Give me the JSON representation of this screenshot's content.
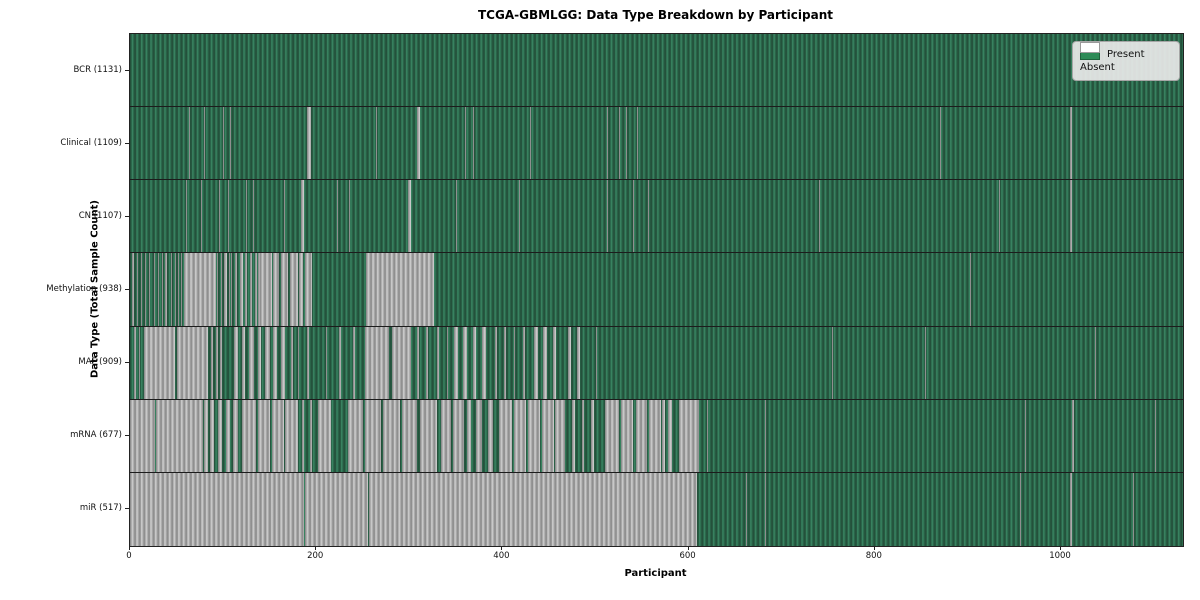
{
  "title": "TCGA-GBMLGG: Data Type Breakdown by Participant",
  "colors": {
    "present": "#2E8B57",
    "absent": "#FFFFFF"
  },
  "legend": {
    "present_label": "Present",
    "absent_label": "Absent"
  },
  "chart_data": {
    "type": "heatmap",
    "title": "TCGA-GBMLGG: Data Type Breakdown by Participant",
    "xlabel": "Participant",
    "ylabel": "Data Type (Total Sample Count)",
    "legend_entries": [
      {
        "label": "Present",
        "color": "#2E8B57"
      },
      {
        "label": "Absent",
        "color": "#FFFFFF"
      }
    ],
    "legend_position": "upper right",
    "grid": false,
    "n_participants": 1131,
    "x_axis": {
      "label": "Participant",
      "ticks": [
        0,
        200,
        400,
        600,
        800,
        1000
      ],
      "range": [
        0,
        1131
      ]
    },
    "rows": [
      {
        "name": "BCR",
        "label": "BCR (1131)",
        "present_count": 1131,
        "absent_runs": []
      },
      {
        "name": "Clinical",
        "label": "Clinical (1109)",
        "present_count": 1109,
        "absent_runs": [
          [
            63,
            64
          ],
          [
            80,
            81
          ],
          [
            100,
            101
          ],
          [
            107,
            108
          ],
          [
            190,
            194
          ],
          [
            264,
            265
          ],
          [
            308,
            311
          ],
          [
            360,
            361
          ],
          [
            368,
            369
          ],
          [
            430,
            431
          ],
          [
            512,
            513
          ],
          [
            525,
            526
          ],
          [
            533,
            534
          ],
          [
            545,
            546
          ],
          [
            870,
            871
          ],
          [
            1010,
            1012
          ]
        ]
      },
      {
        "name": "CN",
        "label": "CN (1107)",
        "present_count": 1107,
        "absent_runs": [
          [
            60,
            61
          ],
          [
            76,
            77
          ],
          [
            96,
            97
          ],
          [
            105,
            106
          ],
          [
            125,
            126
          ],
          [
            132,
            133
          ],
          [
            165,
            166
          ],
          [
            184,
            187
          ],
          [
            222,
            223
          ],
          [
            235,
            236
          ],
          [
            299,
            302
          ],
          [
            350,
            351
          ],
          [
            418,
            419
          ],
          [
            512,
            513
          ],
          [
            540,
            541
          ],
          [
            556,
            557
          ],
          [
            740,
            741
          ],
          [
            933,
            934
          ],
          [
            1010,
            1012
          ]
        ]
      },
      {
        "name": "Methylation",
        "label": "Methylation (938)",
        "present_count": 938,
        "absent_runs": [
          [
            2,
            4
          ],
          [
            7,
            9
          ],
          [
            12,
            13
          ],
          [
            16,
            17
          ],
          [
            20,
            22
          ],
          [
            26,
            27
          ],
          [
            30,
            31
          ],
          [
            34,
            35
          ],
          [
            38,
            40
          ],
          [
            44,
            45
          ],
          [
            48,
            49
          ],
          [
            52,
            53
          ],
          [
            55,
            56
          ],
          [
            58,
            92
          ],
          [
            93,
            95
          ],
          [
            98,
            99
          ],
          [
            101,
            104
          ],
          [
            106,
            107
          ],
          [
            108,
            110
          ],
          [
            113,
            115
          ],
          [
            118,
            121
          ],
          [
            124,
            126
          ],
          [
            129,
            131
          ],
          [
            134,
            136
          ],
          [
            138,
            140
          ],
          [
            140,
            153
          ],
          [
            154,
            160
          ],
          [
            162,
            170
          ],
          [
            172,
            180
          ],
          [
            182,
            186
          ],
          [
            188,
            195
          ],
          [
            254,
            326
          ],
          [
            902,
            903
          ]
        ]
      },
      {
        "name": "MAF",
        "label": "MAF (909)",
        "present_count": 909,
        "absent_runs": [
          [
            4,
            6
          ],
          [
            10,
            11
          ],
          [
            15,
            48
          ],
          [
            50,
            84
          ],
          [
            87,
            89
          ],
          [
            92,
            94
          ],
          [
            97,
            99
          ],
          [
            112,
            116
          ],
          [
            120,
            124
          ],
          [
            128,
            133
          ],
          [
            137,
            141
          ],
          [
            145,
            150
          ],
          [
            154,
            158
          ],
          [
            162,
            166
          ],
          [
            173,
            175
          ],
          [
            180,
            182
          ],
          [
            190,
            192
          ],
          [
            210,
            212
          ],
          [
            225,
            227
          ],
          [
            240,
            242
          ],
          [
            252,
            278
          ],
          [
            281,
            302
          ],
          [
            308,
            310
          ],
          [
            318,
            320
          ],
          [
            330,
            332
          ],
          [
            340,
            342
          ],
          [
            348,
            352
          ],
          [
            358,
            362
          ],
          [
            368,
            372
          ],
          [
            378,
            382
          ],
          [
            392,
            394
          ],
          [
            402,
            404
          ],
          [
            412,
            414
          ],
          [
            422,
            424
          ],
          [
            434,
            438
          ],
          [
            444,
            448
          ],
          [
            454,
            458
          ],
          [
            470,
            474
          ],
          [
            480,
            483
          ],
          [
            500,
            502
          ],
          [
            754,
            755
          ],
          [
            854,
            855
          ],
          [
            1037,
            1038
          ]
        ]
      },
      {
        "name": "mRNA",
        "label": "mRNA (677)",
        "present_count": 677,
        "absent_runs": [
          [
            0,
            27
          ],
          [
            28,
            78
          ],
          [
            79,
            84
          ],
          [
            86,
            90
          ],
          [
            94,
            99
          ],
          [
            103,
            107
          ],
          [
            111,
            116
          ],
          [
            120,
            135
          ],
          [
            137,
            150
          ],
          [
            152,
            165
          ],
          [
            167,
            180
          ],
          [
            185,
            187
          ],
          [
            193,
            195
          ],
          [
            202,
            216
          ],
          [
            234,
            250
          ],
          [
            252,
            270
          ],
          [
            272,
            290
          ],
          [
            292,
            308
          ],
          [
            312,
            330
          ],
          [
            334,
            345
          ],
          [
            347,
            359
          ],
          [
            362,
            366
          ],
          [
            372,
            378
          ],
          [
            384,
            390
          ],
          [
            396,
            410
          ],
          [
            412,
            425
          ],
          [
            427,
            440
          ],
          [
            442,
            455
          ],
          [
            457,
            467
          ],
          [
            475,
            478
          ],
          [
            485,
            488
          ],
          [
            495,
            498
          ],
          [
            510,
            525
          ],
          [
            527,
            540
          ],
          [
            544,
            555
          ],
          [
            557,
            570
          ],
          [
            571,
            575
          ],
          [
            578,
            582
          ],
          [
            590,
            611
          ],
          [
            620,
            621
          ],
          [
            682,
            683
          ],
          [
            906,
            907
          ],
          [
            961,
            962
          ],
          [
            1012,
            1014
          ],
          [
            1101,
            1102
          ]
        ]
      },
      {
        "name": "miR",
        "label": "miR (517)",
        "present_count": 517,
        "absent_runs": [
          [
            0,
            187
          ],
          [
            188,
            256
          ],
          [
            257,
            609
          ],
          [
            662,
            663
          ],
          [
            682,
            683
          ],
          [
            956,
            957
          ],
          [
            1010,
            1012
          ],
          [
            1077,
            1078
          ]
        ]
      }
    ]
  }
}
